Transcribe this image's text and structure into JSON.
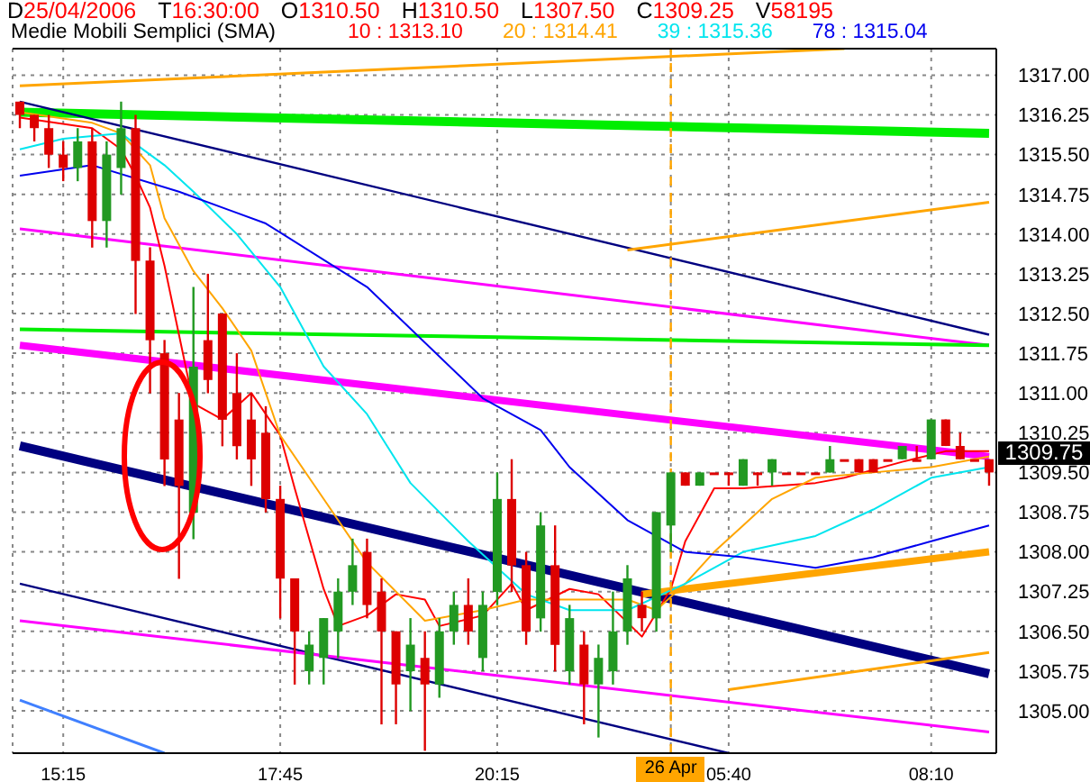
{
  "chart_data": {
    "type": "candlestick",
    "title": "D25/04/2006 T16:30:00 O1310.50 H1310.50 L1307.50 C1309.25 V58195",
    "subtitle": "Medie Mobili Semplici (SMA)",
    "categories": [
      null,
      null,
      null,
      "15:15",
      null,
      null,
      null,
      null,
      null,
      null,
      null,
      null,
      null,
      null,
      null,
      null,
      null,
      null,
      "17:45",
      null,
      null,
      null,
      null,
      null,
      null,
      null,
      null,
      null,
      null,
      null,
      null,
      null,
      null,
      "20:15",
      null,
      null,
      null,
      null,
      null,
      null,
      null,
      null,
      null,
      null,
      null,
      "26 Apr",
      null,
      null,
      null,
      "05:40",
      null,
      null,
      null,
      null,
      null,
      null,
      null,
      null,
      null,
      null,
      null,
      null,
      null,
      "08:10",
      null,
      null,
      null,
      null
    ],
    "ohlc": [
      [
        1316.5,
        1316.5,
        1316.0,
        1316.25
      ],
      [
        1316.25,
        1316.25,
        1315.75,
        1316.0
      ],
      [
        1316.0,
        1316.25,
        1315.25,
        1315.5
      ],
      [
        1315.5,
        1315.75,
        1315.0,
        1315.25
      ],
      [
        1315.25,
        1316.0,
        1315.0,
        1315.75
      ],
      [
        1315.75,
        1316.0,
        1313.75,
        1314.25
      ],
      [
        1314.25,
        1315.75,
        1313.75,
        1315.5
      ],
      [
        1315.25,
        1316.5,
        1314.75,
        1316.0
      ],
      [
        1316.0,
        1316.25,
        1312.5,
        1313.5
      ],
      [
        1313.5,
        1313.75,
        1311.0,
        1312.0
      ],
      [
        1311.75,
        1312.0,
        1309.25,
        1309.75
      ],
      [
        1310.5,
        1311.0,
        1307.5,
        1309.25
      ],
      [
        1308.75,
        1313.0,
        1308.25,
        1311.5
      ],
      [
        1312.0,
        1313.25,
        1311.0,
        1311.25
      ],
      [
        1312.5,
        1312.5,
        1310.0,
        1310.5
      ],
      [
        1311.0,
        1311.75,
        1309.75,
        1310.0
      ],
      [
        1310.5,
        1311.0,
        1309.25,
        1309.75
      ],
      [
        1310.25,
        1310.75,
        1308.75,
        1309.0
      ],
      [
        1309.0,
        1309.25,
        1306.75,
        1307.5
      ],
      [
        1307.5,
        1307.5,
        1305.5,
        1306.5
      ],
      [
        1305.75,
        1306.5,
        1305.5,
        1306.25
      ],
      [
        1306.0,
        1306.75,
        1305.5,
        1306.75
      ],
      [
        1306.5,
        1307.5,
        1306.0,
        1307.25
      ],
      [
        1307.25,
        1308.25,
        1307.0,
        1307.75
      ],
      [
        1308.0,
        1308.25,
        1306.75,
        1307.0
      ],
      [
        1307.25,
        1307.5,
        1304.75,
        1306.5
      ],
      [
        1306.5,
        1306.5,
        1304.75,
        1305.5
      ],
      [
        1305.75,
        1306.75,
        1305.0,
        1306.25
      ],
      [
        1306.0,
        1306.5,
        1304.25,
        1305.5
      ],
      [
        1305.5,
        1306.75,
        1305.25,
        1306.5
      ],
      [
        1306.5,
        1307.25,
        1306.25,
        1307.0
      ],
      [
        1307.0,
        1307.5,
        1306.25,
        1306.5
      ],
      [
        1306.0,
        1307.25,
        1305.75,
        1307.0
      ],
      [
        1307.25,
        1309.5,
        1307.0,
        1309.0
      ],
      [
        1309.0,
        1309.75,
        1307.25,
        1307.75
      ],
      [
        1307.75,
        1308.0,
        1306.25,
        1306.5
      ],
      [
        1306.75,
        1308.75,
        1306.5,
        1308.5
      ],
      [
        1307.75,
        1308.5,
        1305.75,
        1306.25
      ],
      [
        1305.75,
        1307.0,
        1305.5,
        1306.75
      ],
      [
        1306.25,
        1306.5,
        1304.75,
        1305.5
      ],
      [
        1305.5,
        1306.25,
        1304.5,
        1306.0
      ],
      [
        1305.75,
        1307.25,
        1305.5,
        1306.5
      ],
      [
        1306.5,
        1307.75,
        1306.25,
        1307.5
      ],
      [
        1307.0,
        1307.25,
        1306.5,
        1306.75
      ],
      [
        1306.75,
        1308.75,
        1306.5,
        1308.75
      ],
      [
        1308.5,
        1309.5,
        1308.0,
        1309.5
      ],
      [
        1309.5,
        1309.5,
        1309.25,
        1309.25
      ],
      [
        1309.25,
        1309.5,
        1309.25,
        1309.5
      ],
      [
        1309.5,
        1309.5,
        1309.5,
        1309.5
      ],
      [
        1309.5,
        1309.5,
        1309.25,
        1309.5
      ],
      [
        1309.25,
        1309.75,
        1309.25,
        1309.75
      ],
      [
        1309.5,
        1309.5,
        1309.25,
        1309.5
      ],
      [
        1309.5,
        1309.75,
        1309.25,
        1309.75
      ],
      [
        1309.5,
        1309.5,
        1309.5,
        1309.5
      ],
      [
        1309.5,
        1309.5,
        1309.5,
        1309.5
      ],
      [
        1309.5,
        1309.5,
        1309.5,
        1309.5
      ],
      [
        1309.5,
        1310.0,
        1309.5,
        1309.75
      ],
      [
        1309.75,
        1309.75,
        1309.75,
        1309.75
      ],
      [
        1309.75,
        1309.75,
        1309.5,
        1309.5
      ],
      [
        1309.75,
        1309.75,
        1309.5,
        1309.5
      ],
      [
        1309.75,
        1309.75,
        1309.75,
        1309.75
      ],
      [
        1309.75,
        1310.0,
        1309.75,
        1310.0
      ],
      [
        1309.75,
        1310.0,
        1309.75,
        1309.75
      ],
      [
        1309.75,
        1310.5,
        1309.75,
        1310.5
      ],
      [
        1310.5,
        1310.5,
        1310.0,
        1310.0
      ],
      [
        1310.0,
        1310.25,
        1309.75,
        1309.75
      ],
      [
        1309.75,
        1309.75,
        1309.75,
        1309.75
      ],
      [
        1309.75,
        1309.75,
        1309.25,
        1309.5
      ]
    ],
    "colors": [
      "#dd0000",
      "#dd0000",
      "#dd0000",
      "#dd0000",
      "#229922",
      "#dd0000",
      "#229922",
      "#229922",
      "#dd0000",
      "#dd0000",
      "#dd0000",
      "#dd0000",
      "#229922",
      "#dd0000",
      "#dd0000",
      "#dd0000",
      "#dd0000",
      "#dd0000",
      "#dd0000",
      "#dd0000",
      "#229922",
      "#229922",
      "#229922",
      "#229922",
      "#dd0000",
      "#dd0000",
      "#dd0000",
      "#229922",
      "#dd0000",
      "#229922",
      "#229922",
      "#dd0000",
      "#229922",
      "#229922",
      "#dd0000",
      "#dd0000",
      "#229922",
      "#dd0000",
      "#229922",
      "#dd0000",
      "#229922",
      "#229922",
      "#229922",
      "#dd0000",
      "#229922",
      "#229922",
      "#dd0000",
      "#229922",
      "#dd0000",
      "#dd0000",
      "#229922",
      "#dd0000",
      "#229922",
      "#dd0000",
      "#dd0000",
      "#dd0000",
      "#229922",
      "#dd0000",
      "#dd0000",
      "#dd0000",
      "#dd0000",
      "#229922",
      "#dd0000",
      "#229922",
      "#dd0000",
      "#dd0000",
      "#dd0000",
      "#dd0000"
    ],
    "series": [
      {
        "type": "line",
        "color": "#ffa500",
        "values": [
          1316.8,
          null,
          null,
          null,
          null,
          null,
          null,
          null,
          null,
          null,
          null,
          null,
          null,
          null,
          null,
          null,
          null,
          null,
          null,
          null,
          null,
          null,
          null,
          null,
          null,
          null,
          null,
          null,
          null,
          null,
          null,
          null,
          null,
          null,
          null,
          null,
          null,
          null,
          null,
          null,
          null,
          null,
          null,
          null,
          null,
          null,
          null,
          null,
          null,
          null,
          null,
          null,
          null,
          null,
          null,
          null,
          null,
          1317.5,
          null,
          null,
          null,
          null,
          null,
          null,
          null,
          null,
          null,
          null
        ]
      },
      {
        "type": "line",
        "color": "#00ee00",
        "values": [
          1316.3,
          null,
          null,
          null,
          null,
          null,
          null,
          null,
          null,
          null,
          null,
          null,
          null,
          null,
          null,
          null,
          null,
          null,
          null,
          null,
          null,
          null,
          null,
          null,
          null,
          null,
          null,
          null,
          null,
          null,
          null,
          null,
          null,
          null,
          null,
          null,
          null,
          null,
          null,
          null,
          null,
          null,
          null,
          null,
          null,
          null,
          null,
          null,
          null,
          null,
          null,
          null,
          null,
          null,
          null,
          null,
          null,
          null,
          null,
          null,
          null,
          null,
          null,
          null,
          null,
          null,
          null,
          1315.9
        ]
      },
      {
        "type": "line",
        "color": "#000080",
        "values": [
          1316.5,
          null,
          null,
          null,
          null,
          null,
          null,
          null,
          null,
          null,
          null,
          null,
          null,
          null,
          null,
          null,
          null,
          null,
          null,
          null,
          null,
          null,
          null,
          null,
          null,
          null,
          null,
          null,
          null,
          null,
          null,
          null,
          null,
          null,
          null,
          null,
          null,
          null,
          null,
          null,
          null,
          null,
          null,
          null,
          null,
          null,
          null,
          null,
          null,
          null,
          null,
          null,
          null,
          null,
          null,
          null,
          null,
          null,
          null,
          null,
          null,
          null,
          null,
          null,
          null,
          null,
          null,
          1312.1
        ]
      },
      {
        "type": "line",
        "color": "#ff00ff",
        "values": [
          1314.1,
          null,
          null,
          null,
          null,
          null,
          null,
          null,
          null,
          null,
          null,
          null,
          null,
          null,
          null,
          null,
          null,
          null,
          null,
          null,
          null,
          null,
          null,
          null,
          null,
          null,
          null,
          null,
          null,
          null,
          null,
          null,
          null,
          null,
          null,
          null,
          null,
          null,
          null,
          null,
          null,
          null,
          null,
          null,
          null,
          null,
          null,
          null,
          null,
          null,
          null,
          null,
          null,
          null,
          null,
          null,
          null,
          null,
          null,
          null,
          null,
          null,
          null,
          null,
          null,
          null,
          null,
          1311.9
        ]
      },
      {
        "type": "line",
        "color": "#00ee00",
        "values": [
          1312.2,
          null,
          null,
          null,
          null,
          null,
          null,
          null,
          null,
          null,
          null,
          null,
          null,
          null,
          null,
          null,
          null,
          null,
          null,
          null,
          null,
          null,
          null,
          null,
          null,
          null,
          null,
          null,
          null,
          null,
          null,
          null,
          null,
          null,
          null,
          null,
          null,
          null,
          null,
          null,
          null,
          null,
          null,
          null,
          null,
          null,
          null,
          null,
          null,
          null,
          null,
          null,
          null,
          null,
          null,
          null,
          null,
          null,
          null,
          null,
          null,
          null,
          null,
          null,
          null,
          null,
          null,
          1311.9
        ]
      },
      {
        "type": "line",
        "color": "#ff00ff",
        "values": [
          1311.9,
          null,
          null,
          null,
          null,
          null,
          null,
          null,
          null,
          null,
          null,
          null,
          null,
          null,
          null,
          null,
          null,
          null,
          null,
          null,
          null,
          null,
          null,
          null,
          null,
          null,
          null,
          null,
          null,
          null,
          null,
          null,
          null,
          null,
          null,
          null,
          null,
          null,
          null,
          null,
          null,
          null,
          null,
          null,
          null,
          null,
          null,
          null,
          null,
          null,
          null,
          null,
          null,
          null,
          null,
          null,
          null,
          null,
          null,
          null,
          null,
          null,
          null,
          null,
          null,
          null,
          null,
          1309.8
        ]
      },
      {
        "type": "line",
        "color": "#000080",
        "values": [
          1310.0,
          null,
          null,
          null,
          null,
          null,
          null,
          null,
          null,
          null,
          null,
          null,
          null,
          null,
          null,
          null,
          null,
          null,
          null,
          null,
          null,
          null,
          null,
          null,
          null,
          null,
          null,
          null,
          null,
          null,
          null,
          null,
          null,
          null,
          null,
          null,
          null,
          null,
          null,
          null,
          null,
          null,
          null,
          null,
          null,
          null,
          null,
          null,
          null,
          null,
          null,
          null,
          null,
          null,
          null,
          null,
          null,
          null,
          null,
          null,
          null,
          null,
          null,
          null,
          null,
          null,
          null,
          1305.7
        ]
      },
      {
        "type": "line",
        "color": "#000080",
        "values": [
          1307.4,
          null,
          null,
          null,
          null,
          null,
          null,
          null,
          null,
          null,
          null,
          null,
          null,
          null,
          null,
          null,
          null,
          null,
          null,
          null,
          null,
          null,
          null,
          null,
          null,
          null,
          null,
          null,
          null,
          null,
          null,
          null,
          null,
          null,
          null,
          null,
          null,
          null,
          null,
          null,
          null,
          null,
          null,
          null,
          null,
          null,
          null,
          null,
          null,
          1304.2,
          null,
          null,
          null,
          null,
          null,
          null,
          null,
          null,
          null,
          null,
          null,
          null,
          null,
          null,
          null,
          null,
          null,
          null
        ]
      },
      {
        "type": "line",
        "color": "#ff00ff",
        "values": [
          1306.7,
          null,
          null,
          null,
          null,
          null,
          null,
          null,
          null,
          null,
          null,
          null,
          null,
          null,
          null,
          null,
          null,
          null,
          null,
          null,
          null,
          null,
          null,
          null,
          null,
          null,
          null,
          null,
          null,
          null,
          null,
          null,
          null,
          null,
          null,
          null,
          null,
          null,
          null,
          null,
          null,
          null,
          null,
          null,
          null,
          null,
          null,
          null,
          null,
          null,
          null,
          null,
          null,
          null,
          null,
          null,
          null,
          null,
          null,
          null,
          null,
          null,
          null,
          null,
          null,
          null,
          null,
          1304.6
        ]
      },
      {
        "type": "line",
        "color": "#4080ff",
        "values": [
          1305.2,
          null,
          null,
          null,
          null,
          null,
          null,
          null,
          null,
          null,
          1304.2,
          null,
          null,
          null,
          null,
          null,
          null,
          null,
          null,
          null,
          null,
          null,
          null,
          null,
          null,
          null,
          null,
          null,
          null,
          null,
          null,
          null,
          null,
          null,
          null,
          null,
          null,
          null,
          null,
          null,
          null,
          null,
          null,
          null,
          null,
          null,
          null,
          null,
          null,
          null,
          null,
          null,
          null,
          null,
          null,
          null,
          null,
          null,
          null,
          null,
          null,
          null,
          null,
          null,
          null,
          null,
          null,
          null
        ]
      },
      {
        "type": "line",
        "color": "#ffa500",
        "values": [
          null,
          null,
          null,
          null,
          null,
          null,
          null,
          null,
          null,
          null,
          null,
          null,
          null,
          null,
          null,
          null,
          null,
          null,
          null,
          null,
          null,
          null,
          null,
          null,
          null,
          null,
          null,
          null,
          null,
          null,
          null,
          null,
          null,
          null,
          null,
          null,
          null,
          null,
          null,
          null,
          null,
          null,
          1313.7,
          null,
          null,
          null,
          null,
          null,
          null,
          null,
          null,
          null,
          null,
          null,
          null,
          null,
          null,
          null,
          null,
          null,
          null,
          null,
          null,
          null,
          null,
          null,
          null,
          1314.6
        ]
      },
      {
        "type": "line",
        "color": "#ffa500",
        "values": [
          null,
          null,
          null,
          null,
          null,
          null,
          null,
          null,
          null,
          null,
          null,
          null,
          null,
          null,
          null,
          null,
          null,
          null,
          null,
          null,
          null,
          null,
          null,
          null,
          null,
          null,
          null,
          null,
          null,
          null,
          null,
          null,
          null,
          null,
          null,
          null,
          null,
          null,
          null,
          null,
          null,
          null,
          null,
          null,
          null,
          null,
          null,
          null,
          null,
          1305.4,
          null,
          null,
          null,
          null,
          null,
          null,
          null,
          null,
          null,
          null,
          null,
          null,
          null,
          null,
          null,
          null,
          null,
          1306.1
        ]
      },
      {
        "type": "line",
        "color": "#ffa500",
        "values": [
          null,
          null,
          null,
          null,
          null,
          null,
          null,
          null,
          null,
          null,
          null,
          null,
          null,
          null,
          null,
          null,
          null,
          null,
          null,
          null,
          null,
          null,
          null,
          null,
          null,
          null,
          null,
          null,
          null,
          null,
          null,
          null,
          null,
          null,
          null,
          null,
          null,
          null,
          null,
          null,
          null,
          null,
          null,
          1307.2,
          null,
          null,
          null,
          null,
          null,
          null,
          null,
          null,
          null,
          null,
          null,
          null,
          null,
          null,
          null,
          null,
          null,
          null,
          null,
          null,
          null,
          null,
          null,
          1308.0
        ]
      },
      {
        "type": "line",
        "name": "10 : 1313.10",
        "color": "#ff0000",
        "values": [
          1316.2,
          null,
          null,
          null,
          null,
          1316.0,
          null,
          1315.6,
          1315.1,
          1314.5,
          1313.4,
          1312.1,
          1310.8,
          null,
          1310.5,
          null,
          1311.0,
          null,
          1310.2,
          1309.2,
          null,
          1307.3,
          1306.6,
          null,
          1306.8,
          null,
          1307.2,
          null,
          1307.1,
          1306.6,
          null,
          null,
          1306.8,
          null,
          1307.4,
          1306.9,
          null,
          null,
          1307.3,
          null,
          1307.2,
          null,
          null,
          1306.4,
          null,
          1307.3,
          1308.2,
          null,
          1309.2,
          null,
          1309.2,
          null,
          null,
          null,
          null,
          1309.3,
          null,
          1309.4,
          null,
          null,
          null,
          1309.7,
          null,
          null,
          1309.9,
          null,
          null,
          1309.9
        ]
      },
      {
        "type": "line",
        "name": "20 : 1314.41",
        "color": "#ffa500",
        "values": [
          1316.3,
          null,
          null,
          null,
          null,
          1316.1,
          null,
          1315.9,
          null,
          1315.3,
          1314.3,
          null,
          1313.3,
          null,
          1312.6,
          null,
          1311.8,
          null,
          1310.2,
          null,
          null,
          1309.0,
          null,
          null,
          1307.8,
          null,
          null,
          null,
          1306.7,
          null,
          null,
          null,
          1306.9,
          null,
          null,
          1307.1,
          null,
          null,
          1307.1,
          null,
          null,
          null,
          1307.1,
          null,
          1306.9,
          null,
          1307.4,
          null,
          1308.0,
          null,
          1308.5,
          null,
          1309.0,
          null,
          null,
          1309.4,
          null,
          null,
          null,
          1309.5,
          null,
          null,
          null,
          1309.6,
          null,
          null,
          null,
          1309.8
        ]
      },
      {
        "type": "line",
        "name": "39 : 1315.36",
        "color": "#00e5ee",
        "values": [
          1315.6,
          null,
          null,
          1315.8,
          null,
          null,
          null,
          1315.9,
          null,
          null,
          1315.3,
          null,
          1314.8,
          null,
          null,
          1314.0,
          null,
          null,
          1313.0,
          null,
          null,
          1311.5,
          null,
          null,
          1310.6,
          null,
          null,
          1309.3,
          null,
          null,
          null,
          1308.2,
          null,
          null,
          null,
          1307.2,
          null,
          null,
          1306.9,
          null,
          null,
          null,
          1306.9,
          null,
          null,
          null,
          1307.4,
          null,
          null,
          null,
          1308.0,
          null,
          null,
          null,
          null,
          1308.3,
          null,
          null,
          null,
          1308.8,
          null,
          null,
          null,
          1309.4,
          null,
          null,
          null,
          1309.6
        ]
      },
      {
        "type": "line",
        "name": "78 : 1315.04",
        "color": "#0000ee",
        "values": [
          1315.1,
          null,
          null,
          null,
          null,
          1315.3,
          null,
          null,
          null,
          null,
          null,
          1314.8,
          null,
          null,
          null,
          null,
          null,
          1314.2,
          null,
          null,
          null,
          null,
          null,
          null,
          1313.0,
          null,
          null,
          null,
          null,
          null,
          null,
          null,
          1310.9,
          null,
          null,
          null,
          1310.3,
          null,
          1309.6,
          null,
          null,
          null,
          1308.6,
          null,
          null,
          null,
          1308.0,
          null,
          null,
          null,
          1307.9,
          null,
          null,
          null,
          null,
          1307.7,
          null,
          null,
          null,
          1307.9,
          null,
          null,
          null,
          1308.2,
          null,
          null,
          null,
          1308.5
        ]
      }
    ],
    "ylim": [
      1304.2,
      1317.5
    ],
    "yticks": [
      {
        "value": 1305,
        "label": "1305.00"
      },
      {
        "value": 1305.75,
        "label": "1305.75"
      },
      {
        "value": 1306.5,
        "label": "1306.50"
      },
      {
        "value": 1307.25,
        "label": "1307.25"
      },
      {
        "value": 1308,
        "label": "1308.00"
      },
      {
        "value": 1308.75,
        "label": "1308.75"
      },
      {
        "value": 1309.5,
        "label": "1309.50"
      },
      {
        "value": 1310.25,
        "label": "1310.25"
      },
      {
        "value": 1311,
        "label": "1311.00"
      },
      {
        "value": 1311.75,
        "label": "1311.75"
      },
      {
        "value": 1312.5,
        "label": "1312.50"
      },
      {
        "value": 1313.25,
        "label": "1313.25"
      },
      {
        "value": 1314,
        "label": "1314.00"
      },
      {
        "value": 1314.75,
        "label": "1314.75"
      },
      {
        "value": 1315.5,
        "label": "1315.50"
      },
      {
        "value": 1316.25,
        "label": "1316.25"
      },
      {
        "value": 1317,
        "label": "1317.00"
      }
    ],
    "ref_lines": [
      {
        "axis": "x",
        "value": "26 Apr",
        "color": "#ffa500",
        "line_style": "dashed"
      }
    ],
    "annotations": [
      "1309.75"
    ],
    "grid": true,
    "legend": "top"
  }
}
